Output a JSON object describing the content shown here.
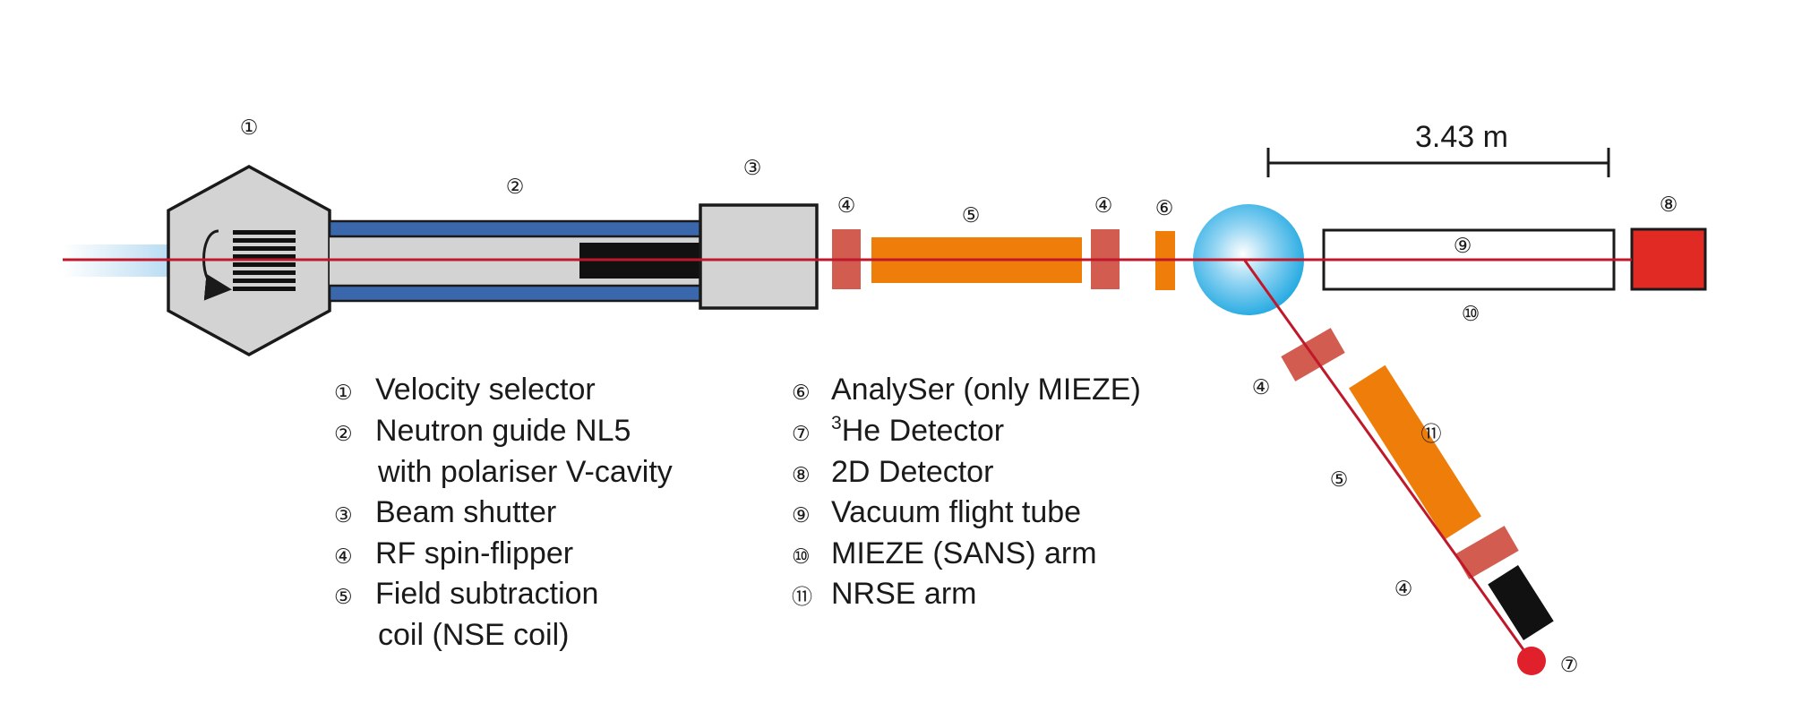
{
  "colors": {
    "beam": "#c0182a",
    "guide_blue": "#3b67ad",
    "housing_gray": "#d3d3d3",
    "spin_flipper": "#d25c50",
    "nse_coil": "#ef7d0a",
    "detector_2d": "#e12a24",
    "detector_3he": "#e0202a",
    "sample_sphere": "#1aa6e0",
    "outline": "#1a1a1a"
  },
  "icons": {
    "selector": "rotation-arrow-icon",
    "sample": "sample-sphere-icon"
  },
  "scale_bar": {
    "label": "3.43 m"
  },
  "component_markers": {
    "velocity_selector": "①",
    "neutron_guide": "②",
    "beam_shutter": "③",
    "spin_flipper": "④",
    "field_subtraction_coil": "⑤",
    "analyser": "⑥",
    "he3_detector": "⑦",
    "detector_2d": "⑧",
    "vacuum_tube": "⑨",
    "mieze_arm": "⑩",
    "nrse_arm": "⑪"
  },
  "legend": {
    "left": [
      {
        "marker": "①",
        "text": "Velocity selector"
      },
      {
        "marker": "②",
        "text": "Neutron guide NL5"
      },
      {
        "marker": "",
        "text": "with polariser V-cavity"
      },
      {
        "marker": "③",
        "text": "Beam shutter"
      },
      {
        "marker": "④",
        "text": "RF spin-flipper"
      },
      {
        "marker": "⑤",
        "text": "Field subtraction"
      },
      {
        "marker": "",
        "text": "coil (NSE coil)"
      }
    ],
    "right": [
      {
        "marker": "⑥",
        "text": "AnalySer (only MIEZE)"
      },
      {
        "marker": "⑦",
        "sup": "3",
        "text": "He Detector"
      },
      {
        "marker": "⑧",
        "text": "2D Detector"
      },
      {
        "marker": "⑨",
        "text": "Vacuum flight tube"
      },
      {
        "marker": "⑩",
        "text": "MIEZE (SANS) arm"
      },
      {
        "marker": "⑪",
        "text": "NRSE arm"
      }
    ]
  }
}
